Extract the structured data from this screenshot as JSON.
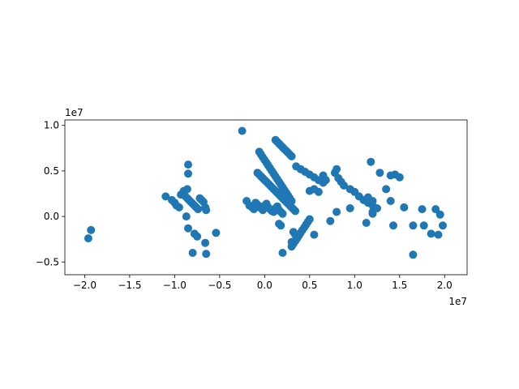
{
  "chart_data": {
    "type": "scatter",
    "title": "",
    "xlabel": "",
    "ylabel": "",
    "x_offset_label": "1e7",
    "y_offset_label": "1e7",
    "xlim": [
      -2.22,
      2.25
    ],
    "ylim": [
      -0.64,
      1.06
    ],
    "grid": false,
    "legend": "none",
    "marker_color": "#1f77b4",
    "xticks": [
      -2.0,
      -1.5,
      -1.0,
      -0.5,
      0.0,
      0.5,
      1.0,
      1.5,
      2.0
    ],
    "xtick_labels": [
      "−2.0",
      "−1.5",
      "−1.0",
      "−0.5",
      "0.0",
      "0.5",
      "1.0",
      "1.5",
      "2.0"
    ],
    "yticks": [
      -0.5,
      0.0,
      0.5,
      1.0
    ],
    "ytick_labels": [
      "−0.5",
      "0.0",
      "0.5",
      "1.0"
    ],
    "series": [
      {
        "x": [
          -1.96,
          -1.93,
          -1.1,
          -1.03,
          -1.0,
          -0.98,
          -0.95,
          -0.93,
          -0.9,
          -0.88,
          -0.86,
          -0.84,
          -0.82,
          -0.8,
          -0.78,
          -0.76,
          -0.74,
          -0.72,
          -0.7,
          -0.68,
          -0.66,
          -0.65,
          -0.85,
          -0.85,
          -0.86,
          -0.87,
          -0.85,
          -0.8,
          -0.78,
          -0.75,
          -0.66,
          -0.65,
          -0.54,
          -0.25,
          -0.2,
          -0.17,
          -0.14,
          -0.12,
          -0.1,
          -0.08,
          -0.06,
          -0.04,
          -0.02,
          0.0,
          0.02,
          0.04,
          0.06,
          0.08,
          0.1,
          0.12,
          0.14,
          0.16,
          0.18,
          0.2,
          -0.06,
          -0.04,
          -0.02,
          0.0,
          0.02,
          0.04,
          0.06,
          0.08,
          0.1,
          0.12,
          0.14,
          0.16,
          0.18,
          0.2,
          0.22,
          0.24,
          0.26,
          0.28,
          0.3,
          -0.08,
          -0.06,
          -0.04,
          -0.02,
          0.0,
          0.02,
          0.04,
          0.06,
          0.08,
          0.1,
          0.12,
          0.14,
          0.16,
          0.18,
          0.2,
          0.22,
          0.24,
          0.26,
          0.28,
          0.3,
          0.32,
          0.34,
          0.12,
          0.14,
          0.16,
          0.18,
          0.2,
          0.22,
          0.24,
          0.26,
          0.28,
          0.3,
          0.35,
          0.4,
          0.45,
          0.5,
          0.55,
          0.6,
          0.65,
          0.16,
          0.18,
          0.2,
          0.3,
          0.32,
          0.34,
          0.36,
          0.38,
          0.4,
          0.42,
          0.44,
          0.46,
          0.48,
          0.5,
          0.3,
          0.32,
          0.34,
          0.36,
          0.5,
          0.55,
          0.6,
          0.65,
          0.78,
          0.8,
          0.82,
          0.85,
          0.88,
          0.95,
          1.0,
          1.05,
          1.1,
          1.15,
          1.2,
          1.18,
          1.28,
          1.35,
          1.45,
          1.4,
          1.5,
          1.2,
          1.13,
          1.15,
          1.2,
          1.65,
          1.75,
          1.77,
          1.85,
          1.9,
          1.95,
          1.98,
          1.93,
          1.65,
          1.43,
          1.55,
          1.2,
          1.4,
          1.25,
          0.8,
          0.95,
          0.55,
          0.68,
          0.73
        ],
        "y": [
          -0.24,
          -0.15,
          0.22,
          0.18,
          0.15,
          0.12,
          0.1,
          0.24,
          0.28,
          0.22,
          0.2,
          0.18,
          0.16,
          0.14,
          0.12,
          0.1,
          0.08,
          0.2,
          0.18,
          0.16,
          0.1,
          0.07,
          0.57,
          0.47,
          0.3,
          0.0,
          -0.13,
          -0.4,
          -0.19,
          -0.22,
          -0.29,
          -0.41,
          -0.18,
          0.94,
          0.17,
          0.12,
          0.1,
          0.08,
          0.15,
          0.13,
          0.11,
          0.09,
          0.07,
          0.12,
          0.14,
          0.1,
          0.08,
          0.06,
          0.05,
          0.09,
          0.11,
          0.07,
          0.05,
          0.03,
          0.71,
          0.68,
          0.65,
          0.62,
          0.59,
          0.56,
          0.53,
          0.5,
          0.47,
          0.44,
          0.41,
          0.38,
          0.35,
          0.32,
          0.29,
          0.26,
          0.23,
          0.2,
          0.17,
          0.48,
          0.46,
          0.44,
          0.42,
          0.4,
          0.38,
          0.36,
          0.34,
          0.32,
          0.3,
          0.28,
          0.26,
          0.24,
          0.22,
          0.2,
          0.18,
          0.16,
          0.14,
          0.12,
          0.1,
          0.08,
          0.06,
          0.84,
          0.82,
          0.8,
          0.78,
          0.76,
          0.74,
          0.72,
          0.7,
          0.68,
          0.66,
          0.55,
          0.52,
          0.49,
          0.46,
          0.43,
          0.4,
          0.37,
          -0.08,
          -0.1,
          -0.4,
          -0.33,
          -0.3,
          -0.27,
          -0.24,
          -0.21,
          -0.18,
          -0.15,
          -0.12,
          -0.09,
          -0.06,
          -0.03,
          -0.28,
          -0.17,
          -0.2,
          -0.23,
          0.28,
          0.3,
          0.27,
          0.45,
          0.48,
          0.52,
          0.42,
          0.38,
          0.34,
          0.3,
          0.27,
          0.22,
          0.18,
          0.15,
          0.12,
          0.6,
          0.48,
          0.3,
          0.46,
          0.45,
          0.43,
          0.03,
          -0.07,
          0.21,
          0.17,
          -0.42,
          0.08,
          -0.1,
          -0.19,
          0.08,
          0.02,
          -0.1,
          -0.2,
          -0.1,
          -0.1,
          0.1,
          0.05,
          0.17,
          0.09,
          0.05,
          0.09,
          -0.2,
          0.4,
          -0.05
        ]
      }
    ]
  }
}
